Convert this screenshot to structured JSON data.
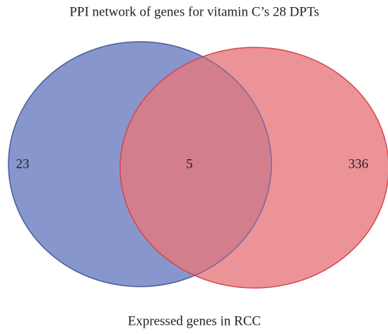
{
  "chart_data": {
    "type": "venn",
    "sets": [
      {
        "name": "PPI network of genes for vitamin C’s 28 DPTs",
        "color": "#8796cc",
        "stroke": "#4f5fa3",
        "value": 23
      },
      {
        "name": "Expressed genes in RCC",
        "color": "#e6787d",
        "stroke": "#d6454d",
        "value": 336
      }
    ],
    "intersection": 5
  }
}
